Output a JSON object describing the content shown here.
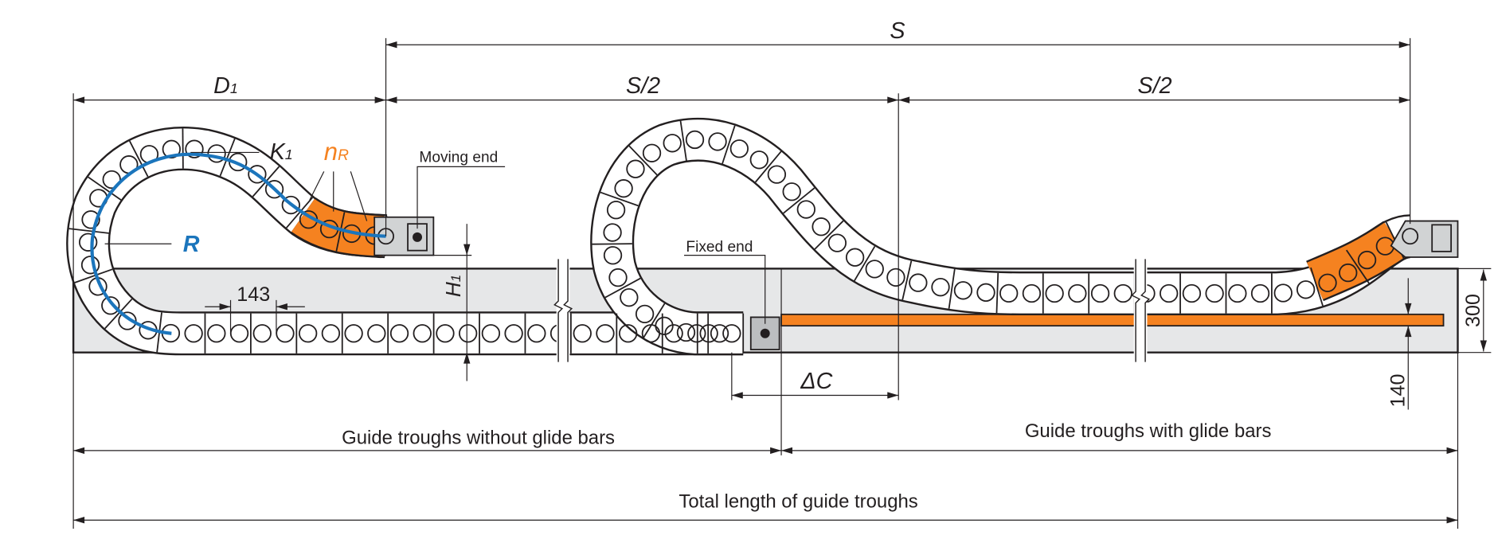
{
  "dimensions": {
    "S": "S",
    "S_half_left": "S/2",
    "S_half_right": "S/2",
    "D1": "D",
    "D1_sub": "1",
    "K1": "K",
    "K1_sub": "1",
    "nR": "n",
    "nR_sub": "R",
    "R": "R",
    "H1": "H",
    "H1_sub": "1",
    "pitch": "143",
    "delta_C": "ΔC",
    "trough_height": "300",
    "bar_height": "140"
  },
  "labels": {
    "moving_end": "Moving end",
    "fixed_end": "Fixed end",
    "without_glide_bars": "Guide troughs without glide bars",
    "with_glide_bars": "Guide troughs with glide bars",
    "total_length": "Total length of guide troughs"
  },
  "colors": {
    "accent_orange": "#f58220",
    "radius_blue": "#1b75bc",
    "trough_gray": "#e6e7e8",
    "line": "#231f20"
  }
}
